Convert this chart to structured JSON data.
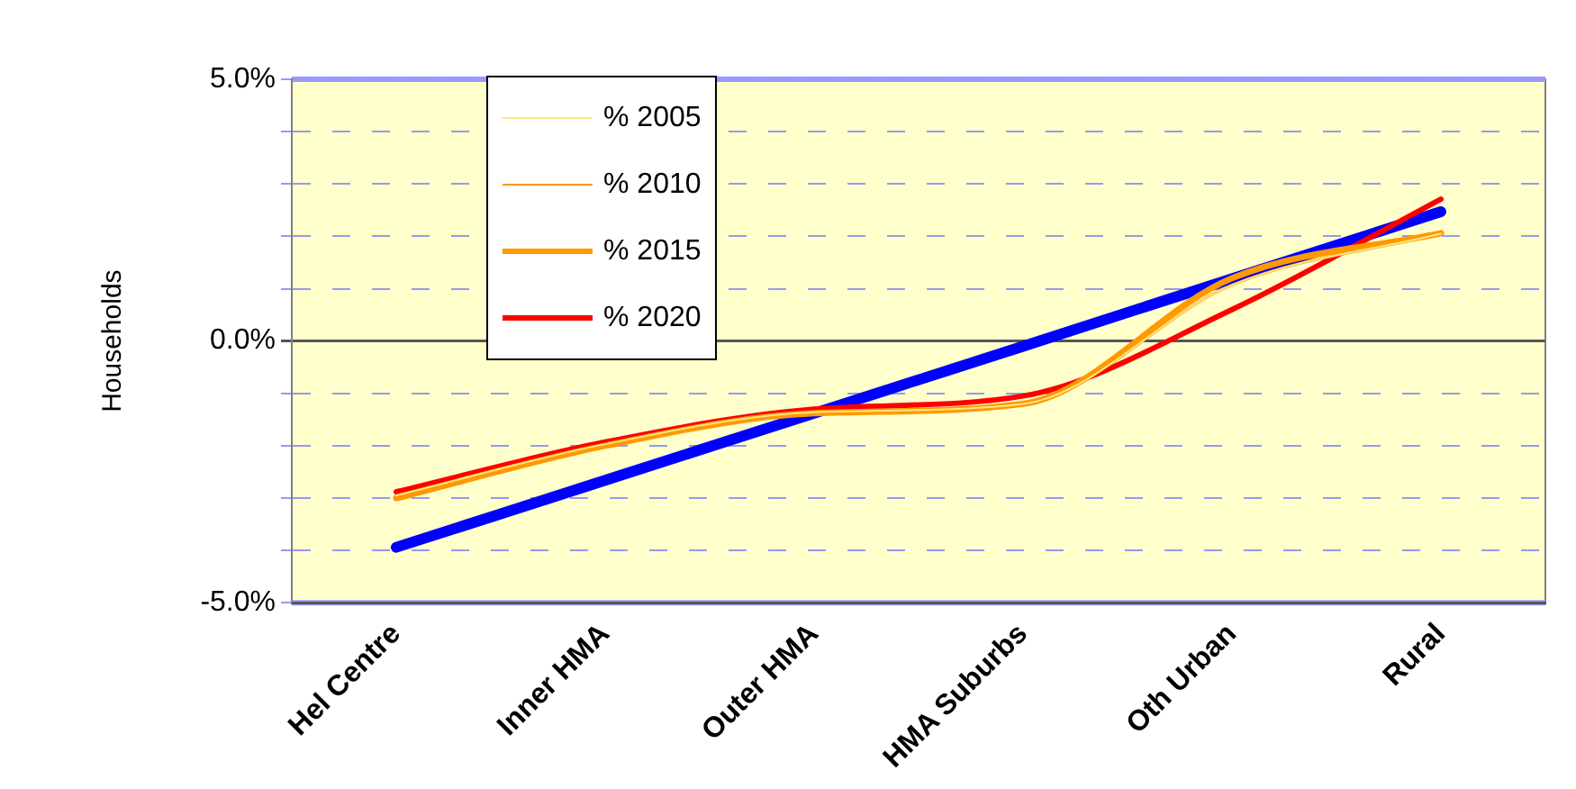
{
  "chart_data": {
    "type": "line",
    "ylabel": "Households",
    "categories": [
      "Hel Centre",
      "Inner HMA",
      "Outer HMA",
      "HMA Suburbs",
      "Oth Urban",
      "Rural"
    ],
    "series": [
      {
        "name": "% 2005",
        "color": "#ffe680",
        "values": [
          -2.95,
          -1.97,
          -1.36,
          -1.2,
          1.07,
          2.05
        ]
      },
      {
        "name": "% 2010",
        "color": "#ff9900",
        "values": [
          -2.95,
          -1.97,
          -1.36,
          -1.2,
          1.07,
          2.05
        ]
      },
      {
        "name": "% 2015",
        "color": "#ff9900",
        "values": [
          -3.0,
          -2.0,
          -1.38,
          -1.2,
          1.2,
          2.06
        ]
      },
      {
        "name": "% 2020",
        "color": "#ff0000",
        "values": [
          -2.88,
          -1.93,
          -1.3,
          -1.05,
          0.6,
          2.71
        ]
      },
      {
        "color": "#0000ff",
        "values": [
          -3.94,
          -2.66,
          -1.38,
          -0.1,
          1.19,
          2.47
        ]
      }
    ],
    "ylim": [
      -5,
      5
    ],
    "yticks": [
      {
        "value": -5,
        "label": "-5.0%"
      },
      {
        "value": -4,
        "label": null
      },
      {
        "value": -3,
        "label": null
      },
      {
        "value": -2,
        "label": null
      },
      {
        "value": -1,
        "label": null
      },
      {
        "value": 0,
        "label": "0.0%"
      },
      {
        "value": 1,
        "label": null
      },
      {
        "value": 2,
        "label": null
      },
      {
        "value": 3,
        "label": null
      },
      {
        "value": 4,
        "label": null
      },
      {
        "value": 5,
        "label": "5.0%"
      }
    ],
    "grid": "y",
    "legend": "top left",
    "marker": "none",
    "line_style": "solid"
  }
}
